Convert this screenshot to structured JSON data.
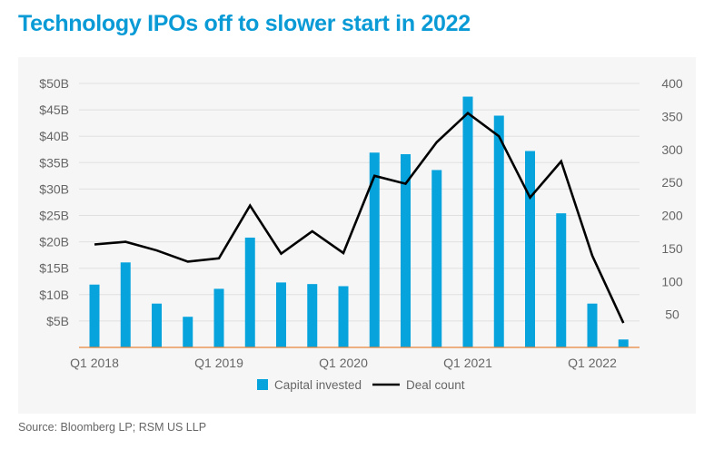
{
  "title": "Technology IPOs off to slower start in 2022",
  "source": "Source: Bloomberg LP; RSM US LLP",
  "chart_data": {
    "type": "bar+line",
    "categories": [
      "Q1 2018",
      "Q2 2018",
      "Q3 2018",
      "Q4 2018",
      "Q1 2019",
      "Q2 2019",
      "Q3 2019",
      "Q4 2019",
      "Q1 2020",
      "Q2 2020",
      "Q3 2020",
      "Q4 2020",
      "Q1 2021",
      "Q2 2021",
      "Q3 2021",
      "Q4 2021",
      "Q1 2022",
      "Q2 2022"
    ],
    "x_tick_labels": [
      "Q1 2018",
      "Q1 2019",
      "Q1 2020",
      "Q1 2021",
      "Q1 2022"
    ],
    "series": [
      {
        "name": "Capital invested",
        "type": "bar",
        "axis": "left",
        "color": "#06a3dd",
        "values": [
          11.9,
          16.1,
          8.3,
          5.8,
          11.1,
          20.8,
          12.3,
          12.0,
          11.6,
          36.9,
          36.6,
          33.6,
          47.5,
          43.9,
          37.2,
          25.4,
          8.3,
          1.5
        ]
      },
      {
        "name": "Deal count",
        "type": "line",
        "axis": "right",
        "color": "#000000",
        "values": [
          156,
          160,
          147,
          130,
          135,
          215,
          142,
          176,
          143,
          260,
          248,
          311,
          355,
          320,
          227,
          282,
          139,
          37
        ]
      }
    ],
    "left_axis": {
      "ylim": [
        0,
        50
      ],
      "ticks": [
        5,
        10,
        15,
        20,
        25,
        30,
        35,
        40,
        45,
        50
      ],
      "tick_labels": [
        "$5B",
        "$10B",
        "$15B",
        "$20B",
        "$25B",
        "$30B",
        "$35B",
        "$40B",
        "$45B",
        "$50B"
      ]
    },
    "right_axis": {
      "ylim": [
        0,
        400
      ],
      "ticks": [
        50,
        100,
        150,
        200,
        250,
        300,
        350,
        400
      ],
      "tick_labels": [
        "50",
        "100",
        "150",
        "200",
        "250",
        "300",
        "350",
        "400"
      ]
    },
    "grid": true,
    "legend": "bottom-center",
    "baseline_color": "#e8823a"
  }
}
